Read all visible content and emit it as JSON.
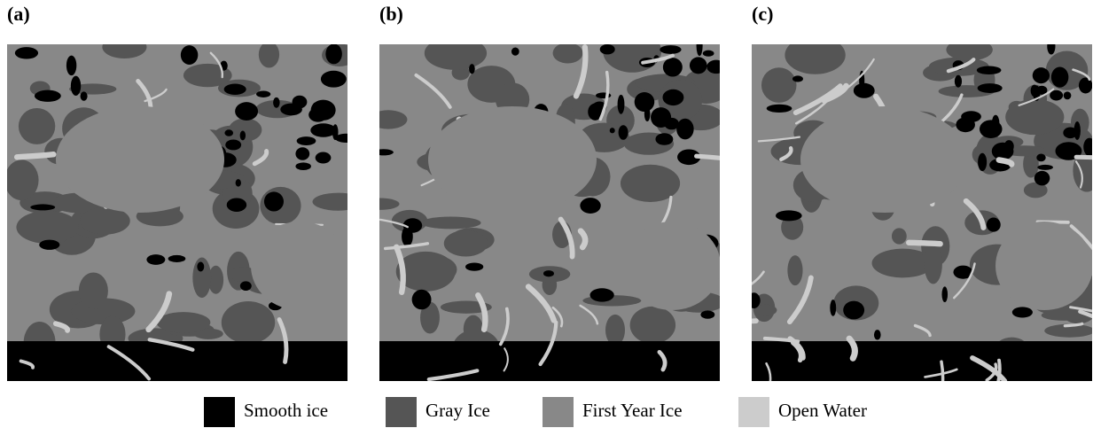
{
  "figure": {
    "panels": [
      {
        "label": "(a)"
      },
      {
        "label": "(b)"
      },
      {
        "label": "(c)"
      }
    ],
    "legend": [
      {
        "name": "Smooth ice",
        "color": "#000000"
      },
      {
        "name": "Gray Ice",
        "color": "#555555"
      },
      {
        "name": "First Year Ice",
        "color": "#888888"
      },
      {
        "name": "Open Water",
        "color": "#cccccc"
      }
    ]
  }
}
